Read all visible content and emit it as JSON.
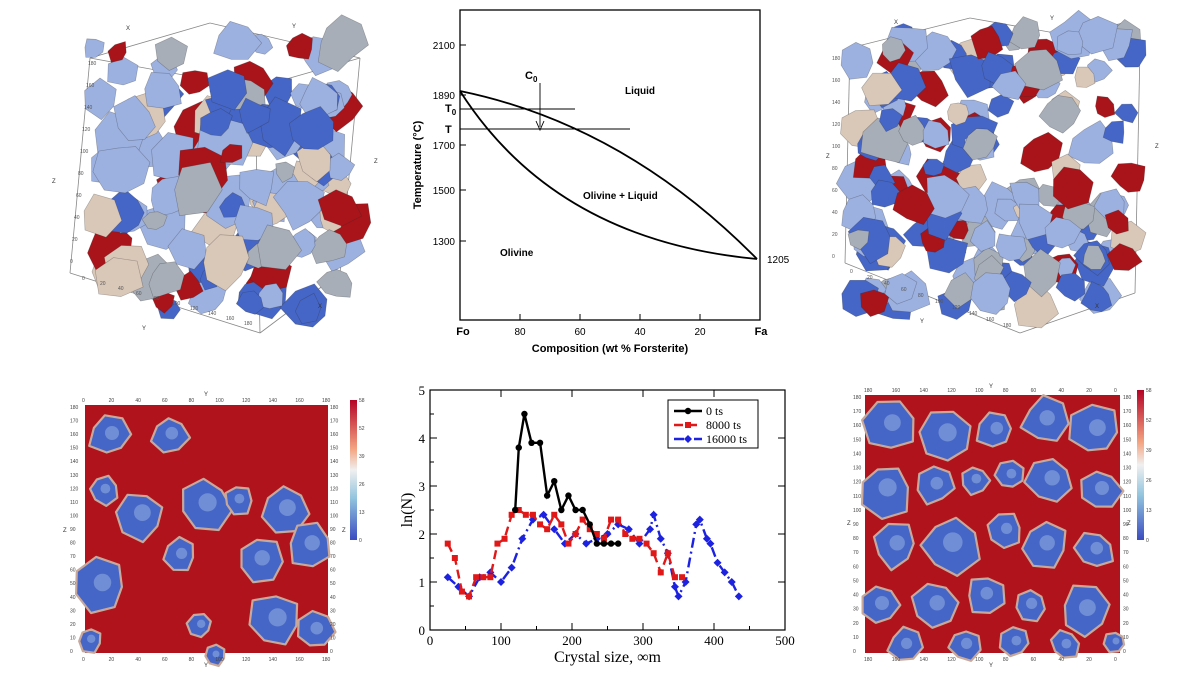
{
  "colors": {
    "grain_red": "#a8141a",
    "grain_blue": "#4566c6",
    "grain_light_blue": "#9cb1e0",
    "grain_beige": "#d9c7b8",
    "grain_grey": "#a7aeb8",
    "matrix_red": "#b0131b",
    "series_black": "#000000",
    "series_red": "#e01818",
    "series_blue": "#1c22e0"
  },
  "cube_left": {
    "axis_labels": [
      "X",
      "Y",
      "Z"
    ],
    "ticks": [
      "0",
      "20",
      "40",
      "60",
      "80",
      "100",
      "120",
      "140",
      "160",
      "180"
    ]
  },
  "cube_right": {
    "axis_labels": [
      "X",
      "Y",
      "Z"
    ],
    "ticks": [
      "0",
      "20",
      "40",
      "60",
      "80",
      "100",
      "120",
      "140",
      "160",
      "180"
    ]
  },
  "phase_diagram": {
    "ylabel": "Temperature (°C)",
    "xlabel": "Composition (wt % Forsterite)",
    "y_ticks": [
      "2100",
      "1890",
      "1700",
      "1500",
      "1300"
    ],
    "x_ticks": [
      "Fo",
      "80",
      "60",
      "40",
      "20",
      "Fa"
    ],
    "end_label_right": "1205",
    "labels": {
      "liquid": "Liquid",
      "two_phase": "Olivine + Liquid",
      "solid": "Olivine",
      "c0_main": "C",
      "c0_sub": "0",
      "t0_main": "T",
      "t0_sub": "0",
      "t": "T"
    }
  },
  "slice_left": {
    "axis_labels": [
      "Y",
      "Z"
    ],
    "x_ticks": [
      "0",
      "20",
      "40",
      "60",
      "80",
      "100",
      "120",
      "140",
      "160",
      "180"
    ],
    "y_ticks": [
      "180",
      "170",
      "160",
      "150",
      "140",
      "130",
      "120",
      "110",
      "100",
      "90",
      "80",
      "70",
      "60",
      "50",
      "40",
      "30",
      "20",
      "10",
      "0"
    ],
    "colorbar_ticks": [
      "58",
      "52",
      "39",
      "26",
      "13",
      "0"
    ]
  },
  "slice_right": {
    "axis_labels": [
      "Y",
      "Z"
    ],
    "x_ticks": [
      "180",
      "160",
      "140",
      "120",
      "100",
      "80",
      "60",
      "40",
      "20",
      "0"
    ],
    "y_ticks": [
      "180",
      "170",
      "160",
      "150",
      "140",
      "130",
      "120",
      "110",
      "100",
      "90",
      "80",
      "70",
      "60",
      "50",
      "40",
      "30",
      "20",
      "10",
      "0"
    ],
    "colorbar_ticks": [
      "58",
      "52",
      "39",
      "26",
      "13",
      "0"
    ]
  },
  "chart_data": {
    "type": "line",
    "xlabel": "Crystal size, ∞m",
    "ylabel": "ln(N)",
    "xlim": [
      0,
      500
    ],
    "ylim": [
      0,
      5
    ],
    "x_ticks": [
      "0",
      "100",
      "200",
      "300",
      "400",
      "500"
    ],
    "y_ticks": [
      "0",
      "1",
      "2",
      "3",
      "4",
      "5"
    ],
    "legend_position": "top-right",
    "series": [
      {
        "name": "0 ts",
        "color": "#000000",
        "dash": "",
        "marker": "circle",
        "x": [
          120,
          125,
          133,
          143,
          155,
          165,
          175,
          185,
          195,
          205,
          215,
          225,
          235,
          245,
          255,
          265
        ],
        "y": [
          2.5,
          3.8,
          4.5,
          3.9,
          3.9,
          2.8,
          3.1,
          2.5,
          2.8,
          2.5,
          2.5,
          2.2,
          1.8,
          1.8,
          1.8,
          1.8
        ]
      },
      {
        "name": "8000 ts",
        "color": "#e01818",
        "dash": "9,5",
        "marker": "square",
        "x": [
          25,
          35,
          45,
          55,
          65,
          75,
          85,
          95,
          105,
          115,
          125,
          135,
          145,
          155,
          165,
          175,
          185,
          195,
          205,
          215,
          225,
          235,
          245,
          255,
          265,
          275,
          285,
          295,
          305,
          315,
          325,
          335,
          345,
          355
        ],
        "y": [
          1.8,
          1.5,
          0.8,
          0.7,
          1.1,
          1.1,
          1.1,
          1.8,
          1.9,
          2.4,
          2.5,
          2.4,
          2.4,
          2.2,
          2.1,
          2.4,
          2.2,
          1.8,
          2.0,
          2.3,
          2.1,
          2.0,
          1.9,
          2.3,
          2.3,
          2.0,
          1.9,
          1.9,
          1.8,
          1.6,
          1.2,
          1.6,
          1.1,
          1.1
        ]
      },
      {
        "name": "16000 ts",
        "color": "#1c22e0",
        "dash": "10,4,2,4",
        "marker": "diamond",
        "x": [
          25,
          40,
          55,
          70,
          85,
          100,
          115,
          130,
          145,
          160,
          175,
          190,
          205,
          220,
          235,
          250,
          265,
          280,
          295,
          310,
          315,
          325,
          335,
          345,
          350,
          360,
          375,
          380,
          390,
          395,
          405,
          415,
          425,
          435
        ],
        "y": [
          1.1,
          0.9,
          0.7,
          1.1,
          1.2,
          1.0,
          1.3,
          1.9,
          2.3,
          2.4,
          2.1,
          1.8,
          2.0,
          1.8,
          1.9,
          2.0,
          2.2,
          2.1,
          1.8,
          2.1,
          2.4,
          1.9,
          1.6,
          0.9,
          0.7,
          1.0,
          2.2,
          2.3,
          1.9,
          1.8,
          1.4,
          1.2,
          1.0,
          0.7
        ]
      }
    ]
  }
}
